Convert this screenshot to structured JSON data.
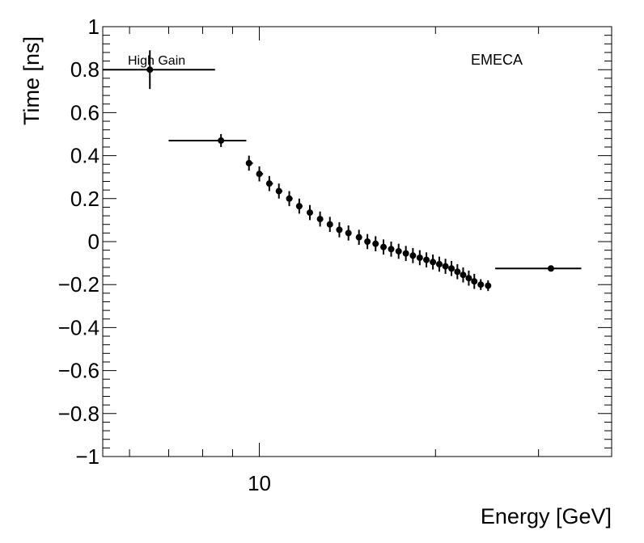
{
  "chart_data": {
    "type": "scatter",
    "xlabel": "Energy [GeV]",
    "ylabel": "Time [ns]",
    "x_scale": "log",
    "xlim": [
      5.4,
      40
    ],
    "ylim": [
      -1,
      1
    ],
    "x_tick_labels": [
      {
        "value": 10,
        "label": "10"
      }
    ],
    "y_ticks": [
      -1,
      -0.8,
      -0.6,
      -0.4,
      -0.2,
      0,
      0.2,
      0.4,
      0.6,
      0.8,
      1
    ],
    "y_tick_labels": [
      "−1",
      "−0.8",
      "−0.6",
      "−0.4",
      "−0.2",
      "0",
      "0.2",
      "0.4",
      "0.6",
      "0.8",
      "1"
    ],
    "grid": false,
    "annotations": {
      "gain": "High Gain",
      "region": "EMECA"
    },
    "series": [
      {
        "points": [
          {
            "x": 6.5,
            "y": 0.8,
            "xlo": 5.4,
            "xhi": 8.4,
            "ylo": 0.71,
            "yhi": 0.89
          },
          {
            "x": 8.6,
            "y": 0.47,
            "xlo": 7.0,
            "xhi": 9.5,
            "ylo": 0.44,
            "yhi": 0.5
          },
          {
            "x": 9.6,
            "y": 0.365,
            "xlo": 9.5,
            "xhi": 9.75,
            "ylo": 0.33,
            "yhi": 0.4
          },
          {
            "x": 10.0,
            "y": 0.315,
            "xlo": 9.9,
            "xhi": 10.15,
            "ylo": 0.28,
            "yhi": 0.35
          },
          {
            "x": 10.4,
            "y": 0.27,
            "xlo": 10.3,
            "xhi": 10.55,
            "ylo": 0.235,
            "yhi": 0.305
          },
          {
            "x": 10.8,
            "y": 0.235,
            "xlo": 10.7,
            "xhi": 10.95,
            "ylo": 0.2,
            "yhi": 0.27
          },
          {
            "x": 11.25,
            "y": 0.2,
            "xlo": 11.15,
            "xhi": 11.4,
            "ylo": 0.165,
            "yhi": 0.235
          },
          {
            "x": 11.7,
            "y": 0.165,
            "xlo": 11.6,
            "xhi": 11.85,
            "ylo": 0.13,
            "yhi": 0.2
          },
          {
            "x": 12.2,
            "y": 0.135,
            "xlo": 12.1,
            "xhi": 12.3,
            "ylo": 0.1,
            "yhi": 0.17
          },
          {
            "x": 12.7,
            "y": 0.105,
            "xlo": 12.6,
            "xhi": 12.8,
            "ylo": 0.07,
            "yhi": 0.14
          },
          {
            "x": 13.2,
            "y": 0.08,
            "xlo": 13.1,
            "xhi": 13.3,
            "ylo": 0.045,
            "yhi": 0.115
          },
          {
            "x": 13.7,
            "y": 0.055,
            "xlo": 13.6,
            "xhi": 13.8,
            "ylo": 0.02,
            "yhi": 0.09
          },
          {
            "x": 14.2,
            "y": 0.04,
            "xlo": 14.1,
            "xhi": 14.3,
            "ylo": 0.005,
            "yhi": 0.075
          },
          {
            "x": 14.8,
            "y": 0.02,
            "xlo": 14.7,
            "xhi": 14.9,
            "ylo": -0.015,
            "yhi": 0.055
          },
          {
            "x": 15.3,
            "y": 0.0,
            "xlo": 15.2,
            "xhi": 15.4,
            "ylo": -0.035,
            "yhi": 0.035
          },
          {
            "x": 15.8,
            "y": -0.01,
            "xlo": 15.7,
            "xhi": 15.9,
            "ylo": -0.045,
            "yhi": 0.025
          },
          {
            "x": 16.3,
            "y": -0.025,
            "xlo": 16.2,
            "xhi": 16.4,
            "ylo": -0.06,
            "yhi": 0.01
          },
          {
            "x": 16.8,
            "y": -0.035,
            "xlo": 16.7,
            "xhi": 16.9,
            "ylo": -0.07,
            "yhi": 0.0
          },
          {
            "x": 17.3,
            "y": -0.045,
            "xlo": 17.2,
            "xhi": 17.4,
            "ylo": -0.08,
            "yhi": -0.01
          },
          {
            "x": 17.8,
            "y": -0.055,
            "xlo": 17.7,
            "xhi": 17.9,
            "ylo": -0.09,
            "yhi": -0.02
          },
          {
            "x": 18.3,
            "y": -0.065,
            "xlo": 18.2,
            "xhi": 18.4,
            "ylo": -0.1,
            "yhi": -0.03
          },
          {
            "x": 18.8,
            "y": -0.075,
            "xlo": 18.7,
            "xhi": 18.9,
            "ylo": -0.11,
            "yhi": -0.04
          },
          {
            "x": 19.3,
            "y": -0.085,
            "xlo": 19.2,
            "xhi": 19.4,
            "ylo": -0.12,
            "yhi": -0.05
          },
          {
            "x": 19.8,
            "y": -0.095,
            "xlo": 19.7,
            "xhi": 19.9,
            "ylo": -0.13,
            "yhi": -0.06
          },
          {
            "x": 20.3,
            "y": -0.105,
            "xlo": 20.2,
            "xhi": 20.4,
            "ylo": -0.14,
            "yhi": -0.07
          },
          {
            "x": 20.8,
            "y": -0.115,
            "xlo": 20.7,
            "xhi": 20.9,
            "ylo": -0.15,
            "yhi": -0.08
          },
          {
            "x": 21.3,
            "y": -0.125,
            "xlo": 21.2,
            "xhi": 21.4,
            "ylo": -0.16,
            "yhi": -0.09
          },
          {
            "x": 21.8,
            "y": -0.14,
            "xlo": 21.7,
            "xhi": 21.9,
            "ylo": -0.175,
            "yhi": -0.105
          },
          {
            "x": 22.3,
            "y": -0.155,
            "xlo": 22.2,
            "xhi": 22.4,
            "ylo": -0.19,
            "yhi": -0.12
          },
          {
            "x": 22.8,
            "y": -0.17,
            "xlo": 22.7,
            "xhi": 22.9,
            "ylo": -0.205,
            "yhi": -0.135
          },
          {
            "x": 23.3,
            "y": -0.185,
            "xlo": 23.2,
            "xhi": 23.4,
            "ylo": -0.22,
            "yhi": -0.15
          },
          {
            "x": 23.9,
            "y": -0.2,
            "xlo": 23.8,
            "xhi": 24.0,
            "ylo": -0.225,
            "yhi": -0.175
          },
          {
            "x": 24.6,
            "y": -0.205,
            "xlo": 24.4,
            "xhi": 24.8,
            "ylo": -0.23,
            "yhi": -0.18
          },
          {
            "x": 31.5,
            "y": -0.125,
            "xlo": 25.3,
            "xhi": 35.5,
            "ylo": -0.135,
            "yhi": -0.115
          }
        ]
      }
    ]
  }
}
